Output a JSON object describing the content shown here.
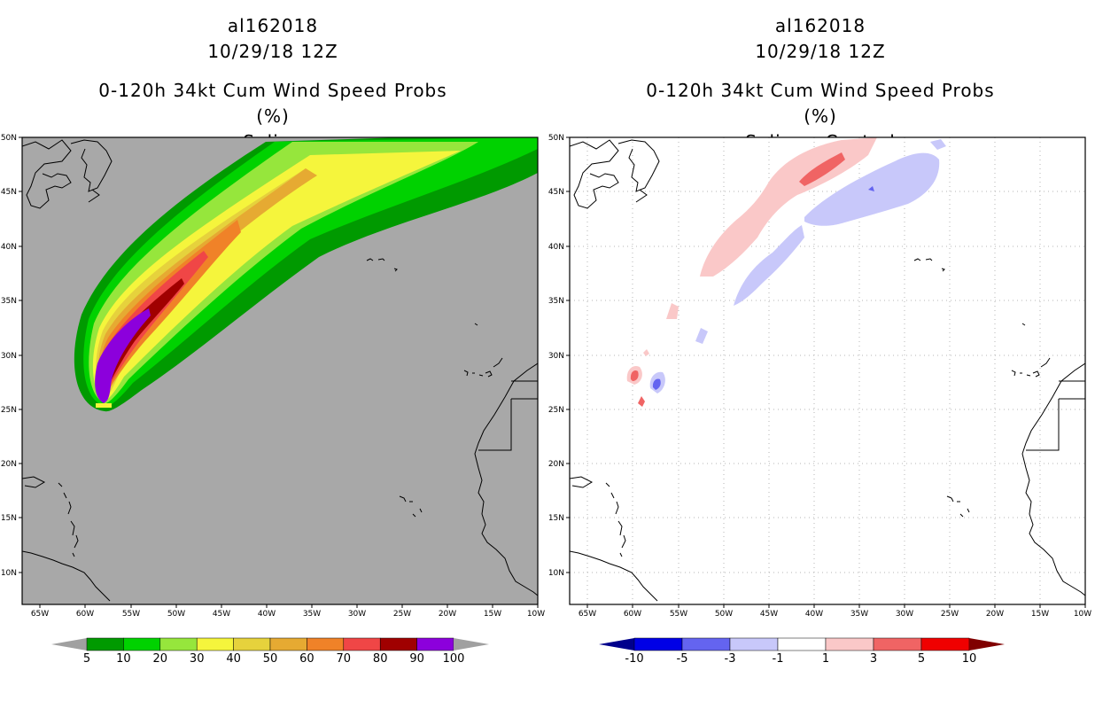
{
  "left_panel": {
    "title_lines": [
      "al162018",
      "10/29/18 12Z",
      "0-120h 34kt Cum Wind Speed Probs (%)",
      "Spline"
    ],
    "colorbar": {
      "labels": [
        "5",
        "10",
        "20",
        "30",
        "40",
        "50",
        "60",
        "70",
        "80",
        "90",
        "100"
      ],
      "colors": [
        "#009a00",
        "#00d200",
        "#96e63c",
        "#f5f53c",
        "#e6d23c",
        "#e6aa32",
        "#f08228",
        "#f04646",
        "#a00000",
        "#8c00dc"
      ],
      "under_color": "#a0a0a0",
      "over_color": "#a0a0a0"
    }
  },
  "right_panel": {
    "title_lines": [
      "al162018",
      "10/29/18 12Z",
      "0-120h 34kt Cum Wind Speed Probs (%)",
      "Spline - Control"
    ],
    "colorbar": {
      "labels": [
        "-10",
        "-5",
        "-3",
        "-1",
        "1",
        "3",
        "5",
        "10"
      ],
      "colors": [
        "#0000e6",
        "#6464f0",
        "#c8c8fa",
        "#ffffff",
        "#fac8c8",
        "#f06464",
        "#f00000"
      ],
      "under_color": "#00008c",
      "over_color": "#800000"
    }
  },
  "map": {
    "lon_labels": [
      "65W",
      "60W",
      "55W",
      "50W",
      "45W",
      "40W",
      "35W",
      "30W",
      "25W",
      "20W",
      "15W",
      "10W"
    ],
    "lat_labels": [
      "50N",
      "45N",
      "40N",
      "35N",
      "30N",
      "25N",
      "20N",
      "15N",
      "10N"
    ]
  }
}
